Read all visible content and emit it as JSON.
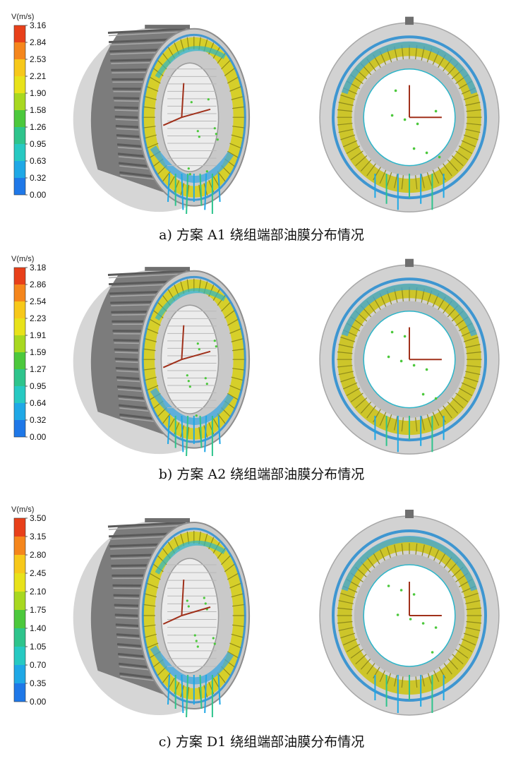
{
  "panels": [
    {
      "unit": "V(m/s)",
      "ticks": [
        "3.16",
        "2.84",
        "2.53",
        "2.21",
        "1.90",
        "1.58",
        "1.26",
        "0.95",
        "0.63",
        "0.32",
        "0.00"
      ],
      "caption": "a)  方案 A1 绕组端部油膜分布情况"
    },
    {
      "unit": "V(m/s)",
      "ticks": [
        "3.18",
        "2.86",
        "2.54",
        "2.23",
        "1.91",
        "1.59",
        "1.27",
        "0.95",
        "0.64",
        "0.32",
        "0.00"
      ],
      "caption": "b) 方案 A2 绕组端部油膜分布情况"
    },
    {
      "unit": "V(m/s)",
      "ticks": [
        "3.50",
        "3.15",
        "2.80",
        "2.45",
        "2.10",
        "1.75",
        "1.40",
        "1.05",
        "0.70",
        "0.35",
        "0.00"
      ],
      "caption": "c) 方案 D1 绕组端部油膜分布情况"
    }
  ],
  "colors": {
    "scale": [
      "#e8401a",
      "#f5861c",
      "#f7c81a",
      "#e8e21a",
      "#a8d820",
      "#4cc83c",
      "#2ec48c",
      "#27c9c2",
      "#1fa8e6",
      "#1f78e8",
      "#1f3ad8"
    ]
  }
}
